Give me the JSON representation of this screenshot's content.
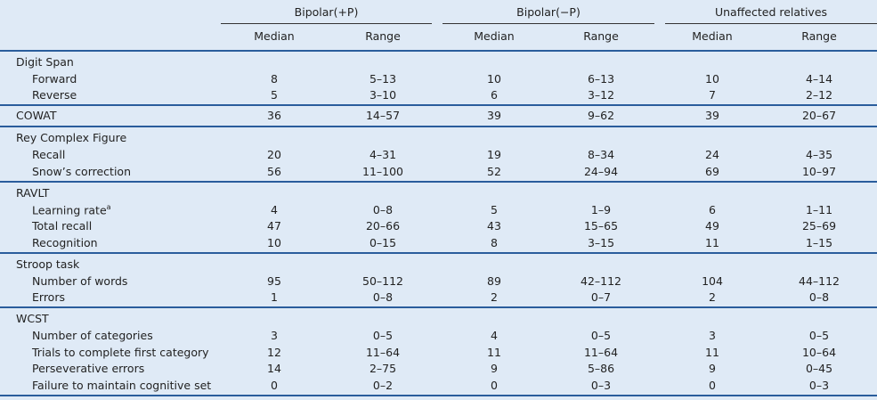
{
  "table": {
    "groups": [
      "Bipolar(+P)",
      "Bipolar(−P)",
      "Unaffected relatives"
    ],
    "subheaders": [
      "Median",
      "Range",
      "Median",
      "Range",
      "Median",
      "Range"
    ],
    "sections": [
      {
        "title": "Digit Span",
        "rows": [
          {
            "label": "Forward",
            "cells": [
              "8",
              "5–13",
              "10",
              "6–13",
              "10",
              "4–14"
            ]
          },
          {
            "label": "Reverse",
            "cells": [
              "5",
              "3–10",
              "6",
              "3–12",
              "7",
              "2–12"
            ]
          }
        ]
      },
      {
        "title": "COWAT",
        "cells": [
          "36",
          "14–57",
          "39",
          "9–62",
          "39",
          "20–67"
        ],
        "rows": []
      },
      {
        "title": "Rey Complex Figure",
        "rows": [
          {
            "label": "Recall",
            "cells": [
              "20",
              "4–31",
              "19",
              "8–34",
              "24",
              "4–35"
            ]
          },
          {
            "label": "Snow’s correction",
            "cells": [
              "56",
              "11–100",
              "52",
              "24–94",
              "69",
              "10–97"
            ]
          }
        ]
      },
      {
        "title": "RAVLT",
        "rows": [
          {
            "label": "Learning rate",
            "note": "a",
            "cells": [
              "4",
              "0–8",
              "5",
              "1–9",
              "6",
              "1–11"
            ]
          },
          {
            "label": "Total recall",
            "cells": [
              "47",
              "20–66",
              "43",
              "15–65",
              "49",
              "25–69"
            ]
          },
          {
            "label": "Recognition",
            "cells": [
              "10",
              "0–15",
              "8",
              "3–15",
              "11",
              "1–15"
            ]
          }
        ]
      },
      {
        "title": "Stroop task",
        "rows": [
          {
            "label": "Number of words",
            "cells": [
              "95",
              "50–112",
              "89",
              "42–112",
              "104",
              "44–112"
            ]
          },
          {
            "label": "Errors",
            "cells": [
              "1",
              "0–8",
              "2",
              "0–7",
              "2",
              "0–8"
            ]
          }
        ]
      },
      {
        "title": "WCST",
        "rows": [
          {
            "label": "Number of categories",
            "cells": [
              "3",
              "0–5",
              "4",
              "0–5",
              "3",
              "0–5"
            ]
          },
          {
            "label": "Trials to complete first category",
            "cells": [
              "12",
              "11–64",
              "11",
              "11–64",
              "11",
              "10–64"
            ]
          },
          {
            "label": "Perseverative errors",
            "cells": [
              "14",
              "2–75",
              "9",
              "5–86",
              "9",
              "0–45"
            ]
          },
          {
            "label": "Failure to maintain cognitive set",
            "cells": [
              "0",
              "0–2",
              "0",
              "0–3",
              "0",
              "0–3"
            ]
          }
        ]
      }
    ]
  }
}
